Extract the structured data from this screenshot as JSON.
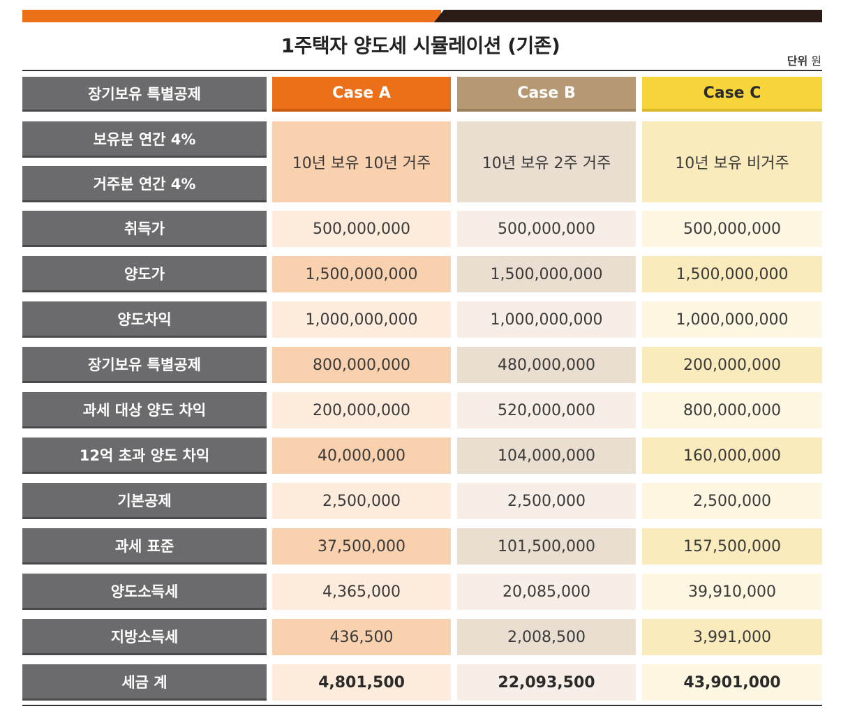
{
  "title": "1주택자 양도세 시뮬레이션 (기존)",
  "unit_label": "단위",
  "unit_value": "원",
  "header_label": "장기보유 특별공제",
  "cases": [
    "Case A",
    "Case B",
    "Case C"
  ],
  "deduction_labels": [
    "보유분 연간 4%",
    "거주분 연간 4%"
  ],
  "scenarios": [
    "10년 보유 10년 거주",
    "10년 보유 2주 거주",
    "10년 보유 비거주"
  ],
  "rows": [
    {
      "label": "취득가",
      "values": [
        "500,000,000",
        "500,000,000",
        "500,000,000"
      ]
    },
    {
      "label": "양도가",
      "values": [
        "1,500,000,000",
        "1,500,000,000",
        "1,500,000,000"
      ]
    },
    {
      "label": "양도차익",
      "values": [
        "1,000,000,000",
        "1,000,000,000",
        "1,000,000,000"
      ]
    },
    {
      "label": "장기보유 특별공제",
      "values": [
        "800,000,000",
        "480,000,000",
        "200,000,000"
      ]
    },
    {
      "label": "과세 대상 양도 차익",
      "values": [
        "200,000,000",
        "520,000,000",
        "800,000,000"
      ]
    },
    {
      "label": "12억 초과 양도 차익",
      "values": [
        "40,000,000",
        "104,000,000",
        "160,000,000"
      ]
    },
    {
      "label": "기본공제",
      "values": [
        "2,500,000",
        "2,500,000",
        "2,500,000"
      ]
    },
    {
      "label": "과세 표준",
      "values": [
        "37,500,000",
        "101,500,000",
        "157,500,000"
      ]
    },
    {
      "label": "양도소득세",
      "values": [
        "4,365,000",
        "20,085,000",
        "39,910,000"
      ]
    },
    {
      "label": "지방소득세",
      "values": [
        "436,500",
        "2,008,500",
        "3,991,000"
      ]
    },
    {
      "label": "세금 계",
      "values": [
        "4,801,500",
        "22,093,500",
        "43,901,000"
      ]
    }
  ]
}
